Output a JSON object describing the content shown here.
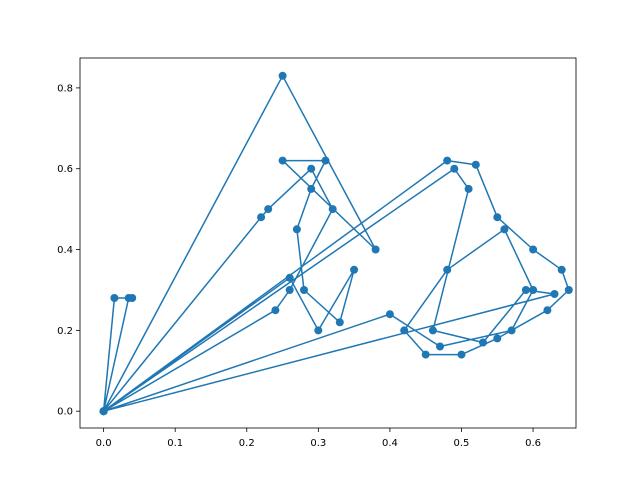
{
  "chart_data": {
    "type": "line",
    "title": "",
    "xlabel": "",
    "ylabel": "",
    "xlim": [
      -0.033,
      0.66
    ],
    "ylim": [
      -0.0416,
      0.874
    ],
    "grid": false,
    "legend": false,
    "marker": "circle",
    "color": "#1f77b4",
    "xticks": [
      0.0,
      0.1,
      0.2,
      0.3,
      0.4,
      0.5,
      0.6
    ],
    "xtick_labels": [
      "0.0",
      "0.1",
      "0.2",
      "0.3",
      "0.4",
      "0.5",
      "0.6"
    ],
    "yticks": [
      0.0,
      0.2,
      0.4,
      0.6,
      0.8
    ],
    "ytick_labels": [
      "0.0",
      "0.2",
      "0.4",
      "0.6",
      "0.8"
    ],
    "series": [
      {
        "x": [
          0.0,
          0.015,
          0.04,
          0.035,
          0.0,
          0.25,
          0.38,
          0.25,
          0.31,
          0.29,
          0.27,
          0.28,
          0.33,
          0.35,
          0.3,
          0.26,
          0.0,
          0.48,
          0.52,
          0.55,
          0.6,
          0.64,
          0.65,
          0.62,
          0.55,
          0.5,
          0.45,
          0.42,
          0.48,
          0.56,
          0.6,
          0.57,
          0.47,
          0.4,
          0.0,
          0.22,
          0.23,
          0.29,
          0.32,
          0.26,
          0.24,
          0.0,
          0.49,
          0.51,
          0.46,
          0.53,
          0.59,
          0.63,
          0.0
        ],
        "y": [
          0.0,
          0.28,
          0.28,
          0.28,
          0.0,
          0.83,
          0.4,
          0.62,
          0.62,
          0.55,
          0.45,
          0.3,
          0.22,
          0.35,
          0.2,
          0.33,
          0.0,
          0.62,
          0.61,
          0.48,
          0.4,
          0.35,
          0.3,
          0.25,
          0.18,
          0.14,
          0.14,
          0.2,
          0.35,
          0.45,
          0.3,
          0.2,
          0.16,
          0.24,
          0.0,
          0.48,
          0.5,
          0.6,
          0.5,
          0.3,
          0.25,
          0.0,
          0.6,
          0.55,
          0.2,
          0.17,
          0.3,
          0.29,
          0.0
        ]
      }
    ]
  }
}
